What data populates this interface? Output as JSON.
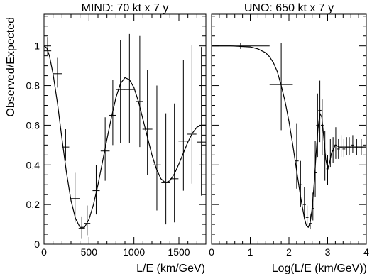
{
  "figure": {
    "ylabel": "Observed/Expected"
  },
  "colors": {
    "axis": "#000000",
    "curve": "#000000",
    "data": "#000000",
    "background": "#ffffff"
  },
  "chart_data": [
    {
      "type": "line",
      "title": "MIND: 70 kt x 7 y",
      "xlabel": "L/E (km/GeV)",
      "ylabel": "Observed/Expected",
      "xlim": [
        0,
        1800
      ],
      "ylim": [
        0,
        1.16
      ],
      "xticks": [
        0,
        500,
        1000,
        1500
      ],
      "xtick_labels": [
        "0",
        "500",
        "1000",
        "1500"
      ],
      "yticks": [
        0,
        0.2,
        0.4,
        0.6,
        0.8,
        1
      ],
      "ytick_labels": [
        "0",
        "0.2",
        "0.4",
        "0.6",
        "0.8",
        "1"
      ],
      "x_log": false,
      "grid": false,
      "series": [
        {
          "kind": "errorbar",
          "points": [
            {
              "x": 40,
              "y": 0.975,
              "xerr": 40,
              "yerr_lo": 0.02,
              "yerr_hi": 0.07
            },
            {
              "x": 150,
              "y": 0.86,
              "xerr": 50,
              "yerr_lo": 0.07,
              "yerr_hi": 0.08
            },
            {
              "x": 240,
              "y": 0.49,
              "xerr": 40,
              "yerr_lo": 0.07,
              "yerr_hi": 0.09
            },
            {
              "x": 345,
              "y": 0.23,
              "xerr": 50,
              "yerr_lo": 0.12,
              "yerr_hi": 0.13
            },
            {
              "x": 420,
              "y": 0.08,
              "xerr": 35,
              "yerr_lo": 0.05,
              "yerr_hi": 0.06
            },
            {
              "x": 480,
              "y": 0.105,
              "xerr": 35,
              "yerr_lo": 0.06,
              "yerr_hi": 0.09
            },
            {
              "x": 580,
              "y": 0.27,
              "xerr": 40,
              "yerr_lo": 0.12,
              "yerr_hi": 0.13
            },
            {
              "x": 680,
              "y": 0.47,
              "xerr": 50,
              "yerr_lo": 0.15,
              "yerr_hi": 0.17
            },
            {
              "x": 765,
              "y": 0.65,
              "xerr": 40,
              "yerr_lo": 0.15,
              "yerr_hi": 0.18
            },
            {
              "x": 850,
              "y": 0.78,
              "xerr": 50,
              "yerr_lo": 0.27,
              "yerr_hi": 0.25
            },
            {
              "x": 950,
              "y": 0.78,
              "xerr": 55,
              "yerr_lo": 0.27,
              "yerr_hi": 0.28
            },
            {
              "x": 1065,
              "y": 0.72,
              "xerr": 40,
              "yerr_lo": 0.23,
              "yerr_hi": 0.33
            },
            {
              "x": 1150,
              "y": 0.58,
              "xerr": 55,
              "yerr_lo": 0.23,
              "yerr_hi": 0.3
            },
            {
              "x": 1255,
              "y": 0.4,
              "xerr": 45,
              "yerr_lo": 0.23,
              "yerr_hi": 0.4
            },
            {
              "x": 1355,
              "y": 0.31,
              "xerr": 50,
              "yerr_lo": 0.21,
              "yerr_hi": 0.35
            },
            {
              "x": 1450,
              "y": 0.33,
              "xerr": 45,
              "yerr_lo": 0.22,
              "yerr_hi": 0.38
            },
            {
              "x": 1550,
              "y": 0.52,
              "xerr": 55,
              "yerr_lo": 0.25,
              "yerr_hi": 0.41
            },
            {
              "x": 1645,
              "y": 0.555,
              "xerr": 50,
              "yerr_lo": 0.25,
              "yerr_hi": 0.45
            },
            {
              "x": 1750,
              "y": 0.515,
              "xerr": 50,
              "yerr_lo": 0.27,
              "yerr_hi": 0.48
            }
          ]
        },
        {
          "kind": "curve",
          "x": [
            0,
            30,
            60,
            100,
            150,
            200,
            250,
            300,
            350,
            400,
            450,
            500,
            550,
            600,
            650,
            700,
            750,
            800,
            850,
            900,
            950,
            1000,
            1050,
            1100,
            1150,
            1200,
            1250,
            1300,
            1350,
            1400,
            1450,
            1500,
            1550,
            1600,
            1650,
            1700,
            1750,
            1800
          ],
          "y": [
            1.0,
            0.99,
            0.95,
            0.86,
            0.71,
            0.53,
            0.36,
            0.22,
            0.13,
            0.085,
            0.085,
            0.125,
            0.2,
            0.3,
            0.415,
            0.53,
            0.64,
            0.74,
            0.81,
            0.84,
            0.83,
            0.79,
            0.72,
            0.63,
            0.54,
            0.45,
            0.38,
            0.33,
            0.31,
            0.32,
            0.355,
            0.405,
            0.46,
            0.515,
            0.56,
            0.59,
            0.6,
            0.6
          ]
        }
      ]
    },
    {
      "type": "line",
      "title": "UNO: 650 kt x 7 y",
      "xlabel": "Log(L/E (km/GeV))",
      "ylabel": "",
      "xlim": [
        0,
        4
      ],
      "ylim": [
        0,
        1.16
      ],
      "xticks": [
        0,
        1,
        2,
        3,
        4
      ],
      "xtick_labels": [
        "0",
        "1",
        "2",
        "3",
        "4"
      ],
      "x_log": false,
      "grid": false,
      "series": [
        {
          "kind": "errorbar",
          "points": [
            {
              "x": 0.75,
              "y": 1.0,
              "xerr": 0.75,
              "yerr_lo": 0.015,
              "yerr_hi": 0.015
            },
            {
              "x": 1.8,
              "y": 0.805,
              "xerr": 0.3,
              "yerr_lo": 0.23,
              "yerr_hi": 0.21
            },
            {
              "x": 2.2,
              "y": 0.42,
              "xerr": 0.05,
              "yerr_lo": 0.14,
              "yerr_hi": 0.19
            },
            {
              "x": 2.3,
              "y": 0.3,
              "xerr": 0.05,
              "yerr_lo": 0.11,
              "yerr_hi": 0.12
            },
            {
              "x": 2.4,
              "y": 0.2,
              "xerr": 0.04,
              "yerr_lo": 0.07,
              "yerr_hi": 0.09
            },
            {
              "x": 2.47,
              "y": 0.135,
              "xerr": 0.035,
              "yerr_lo": 0.04,
              "yerr_hi": 0.06
            },
            {
              "x": 2.55,
              "y": 0.105,
              "xerr": 0.035,
              "yerr_lo": 0.03,
              "yerr_hi": 0.05
            },
            {
              "x": 2.62,
              "y": 0.18,
              "xerr": 0.035,
              "yerr_lo": 0.06,
              "yerr_hi": 0.08
            },
            {
              "x": 2.68,
              "y": 0.36,
              "xerr": 0.035,
              "yerr_lo": 0.12,
              "yerr_hi": 0.16
            },
            {
              "x": 2.74,
              "y": 0.6,
              "xerr": 0.035,
              "yerr_lo": 0.16,
              "yerr_hi": 0.16
            },
            {
              "x": 2.8,
              "y": 0.675,
              "xerr": 0.04,
              "yerr_lo": 0.16,
              "yerr_hi": 0.15
            },
            {
              "x": 2.86,
              "y": 0.6,
              "xerr": 0.035,
              "yerr_lo": 0.15,
              "yerr_hi": 0.13
            },
            {
              "x": 2.93,
              "y": 0.45,
              "xerr": 0.035,
              "yerr_lo": 0.13,
              "yerr_hi": 0.12
            },
            {
              "x": 3.0,
              "y": 0.38,
              "xerr": 0.035,
              "yerr_lo": 0.08,
              "yerr_hi": 0.07
            },
            {
              "x": 3.07,
              "y": 0.46,
              "xerr": 0.035,
              "yerr_lo": 0.07,
              "yerr_hi": 0.07
            },
            {
              "x": 3.14,
              "y": 0.47,
              "xerr": 0.035,
              "yerr_lo": 0.06,
              "yerr_hi": 0.07
            },
            {
              "x": 3.21,
              "y": 0.5,
              "xerr": 0.035,
              "yerr_lo": 0.07,
              "yerr_hi": 0.09
            },
            {
              "x": 3.28,
              "y": 0.48,
              "xerr": 0.035,
              "yerr_lo": 0.05,
              "yerr_hi": 0.05
            },
            {
              "x": 3.35,
              "y": 0.49,
              "xerr": 0.035,
              "yerr_lo": 0.05,
              "yerr_hi": 0.06
            },
            {
              "x": 3.42,
              "y": 0.48,
              "xerr": 0.035,
              "yerr_lo": 0.04,
              "yerr_hi": 0.05
            },
            {
              "x": 3.49,
              "y": 0.49,
              "xerr": 0.035,
              "yerr_lo": 0.04,
              "yerr_hi": 0.05
            },
            {
              "x": 3.56,
              "y": 0.49,
              "xerr": 0.035,
              "yerr_lo": 0.04,
              "yerr_hi": 0.05
            },
            {
              "x": 3.65,
              "y": 0.5,
              "xerr": 0.035,
              "yerr_lo": 0.04,
              "yerr_hi": 0.05
            },
            {
              "x": 3.75,
              "y": 0.49,
              "xerr": 0.04,
              "yerr_lo": 0.04,
              "yerr_hi": 0.04
            },
            {
              "x": 3.87,
              "y": 0.49,
              "xerr": 0.05,
              "yerr_lo": 0.04,
              "yerr_hi": 0.04
            }
          ]
        },
        {
          "kind": "curve",
          "x": [
            0,
            0.5,
            1.0,
            1.2,
            1.4,
            1.5,
            1.6,
            1.7,
            1.8,
            1.9,
            2.0,
            2.1,
            2.2,
            2.3,
            2.4,
            2.45,
            2.5,
            2.55,
            2.6,
            2.65,
            2.7,
            2.75,
            2.8,
            2.85,
            2.9,
            2.95,
            3.0,
            3.05,
            3.1,
            3.2,
            3.3,
            3.5,
            3.7,
            4.0
          ],
          "y": [
            1.0,
            1.0,
            0.995,
            0.985,
            0.965,
            0.945,
            0.915,
            0.87,
            0.8,
            0.72,
            0.62,
            0.5,
            0.37,
            0.24,
            0.13,
            0.095,
            0.085,
            0.11,
            0.18,
            0.3,
            0.45,
            0.58,
            0.66,
            0.64,
            0.54,
            0.43,
            0.38,
            0.41,
            0.46,
            0.5,
            0.49,
            0.49,
            0.49,
            0.49
          ]
        }
      ]
    }
  ]
}
